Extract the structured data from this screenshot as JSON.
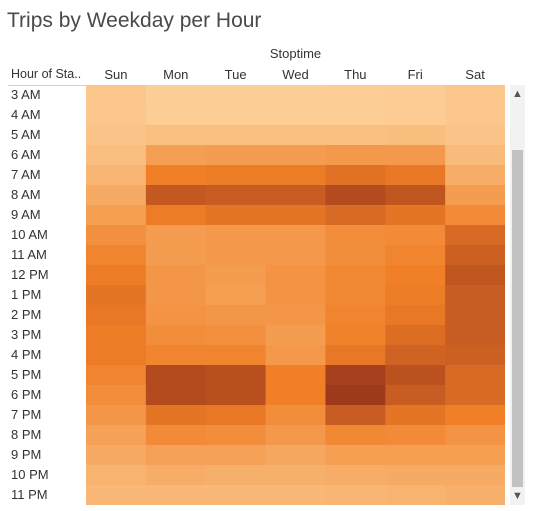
{
  "title": "Trips by Weekday per Hour",
  "chart_data": {
    "type": "heatmap",
    "column_group_label": "Stoptime",
    "row_header": "Hour of Sta..",
    "columns": [
      "Sun",
      "Mon",
      "Tue",
      "Wed",
      "Thu",
      "Fri",
      "Sat"
    ],
    "rows": [
      "3 AM",
      "4 AM",
      "5 AM",
      "6 AM",
      "7 AM",
      "8 AM",
      "9 AM",
      "10 AM",
      "11 AM",
      "12 PM",
      "1 PM",
      "2 PM",
      "3 PM",
      "4 PM",
      "5 PM",
      "6 PM",
      "7 PM",
      "8 PM",
      "9 PM",
      "10 PM",
      "11 PM"
    ],
    "values": [
      [
        0.1,
        0.04,
        0.04,
        0.04,
        0.05,
        0.06,
        0.1
      ],
      [
        0.1,
        0.05,
        0.05,
        0.05,
        0.05,
        0.06,
        0.1
      ],
      [
        0.12,
        0.15,
        0.15,
        0.15,
        0.15,
        0.17,
        0.12
      ],
      [
        0.16,
        0.38,
        0.4,
        0.4,
        0.42,
        0.42,
        0.18
      ],
      [
        0.22,
        0.6,
        0.62,
        0.62,
        0.68,
        0.64,
        0.28
      ],
      [
        0.3,
        0.82,
        0.8,
        0.8,
        0.9,
        0.84,
        0.4
      ],
      [
        0.38,
        0.62,
        0.66,
        0.66,
        0.72,
        0.66,
        0.52
      ],
      [
        0.48,
        0.4,
        0.42,
        0.42,
        0.5,
        0.52,
        0.72
      ],
      [
        0.56,
        0.4,
        0.42,
        0.42,
        0.5,
        0.56,
        0.78
      ],
      [
        0.62,
        0.44,
        0.4,
        0.46,
        0.54,
        0.6,
        0.84
      ],
      [
        0.66,
        0.44,
        0.38,
        0.46,
        0.54,
        0.62,
        0.8
      ],
      [
        0.64,
        0.46,
        0.44,
        0.44,
        0.56,
        0.64,
        0.8
      ],
      [
        0.62,
        0.5,
        0.48,
        0.4,
        0.58,
        0.7,
        0.8
      ],
      [
        0.62,
        0.56,
        0.56,
        0.42,
        0.64,
        0.76,
        0.78
      ],
      [
        0.56,
        0.9,
        0.88,
        0.6,
        0.96,
        0.86,
        0.72
      ],
      [
        0.5,
        0.9,
        0.88,
        0.6,
        1.0,
        0.8,
        0.72
      ],
      [
        0.44,
        0.66,
        0.64,
        0.5,
        0.8,
        0.66,
        0.6
      ],
      [
        0.36,
        0.52,
        0.5,
        0.42,
        0.54,
        0.52,
        0.46
      ],
      [
        0.3,
        0.36,
        0.36,
        0.32,
        0.38,
        0.38,
        0.38
      ],
      [
        0.24,
        0.28,
        0.26,
        0.26,
        0.28,
        0.3,
        0.3
      ],
      [
        0.2,
        0.2,
        0.2,
        0.2,
        0.22,
        0.24,
        0.26
      ]
    ],
    "value_scale": "relative",
    "color_low": "#fdd5a0",
    "color_mid": "#f07f27",
    "color_high": "#9e3a1c",
    "grid": false,
    "legend": "none"
  },
  "scrollbar": {
    "up_glyph": "▲",
    "down_glyph": "▼"
  }
}
